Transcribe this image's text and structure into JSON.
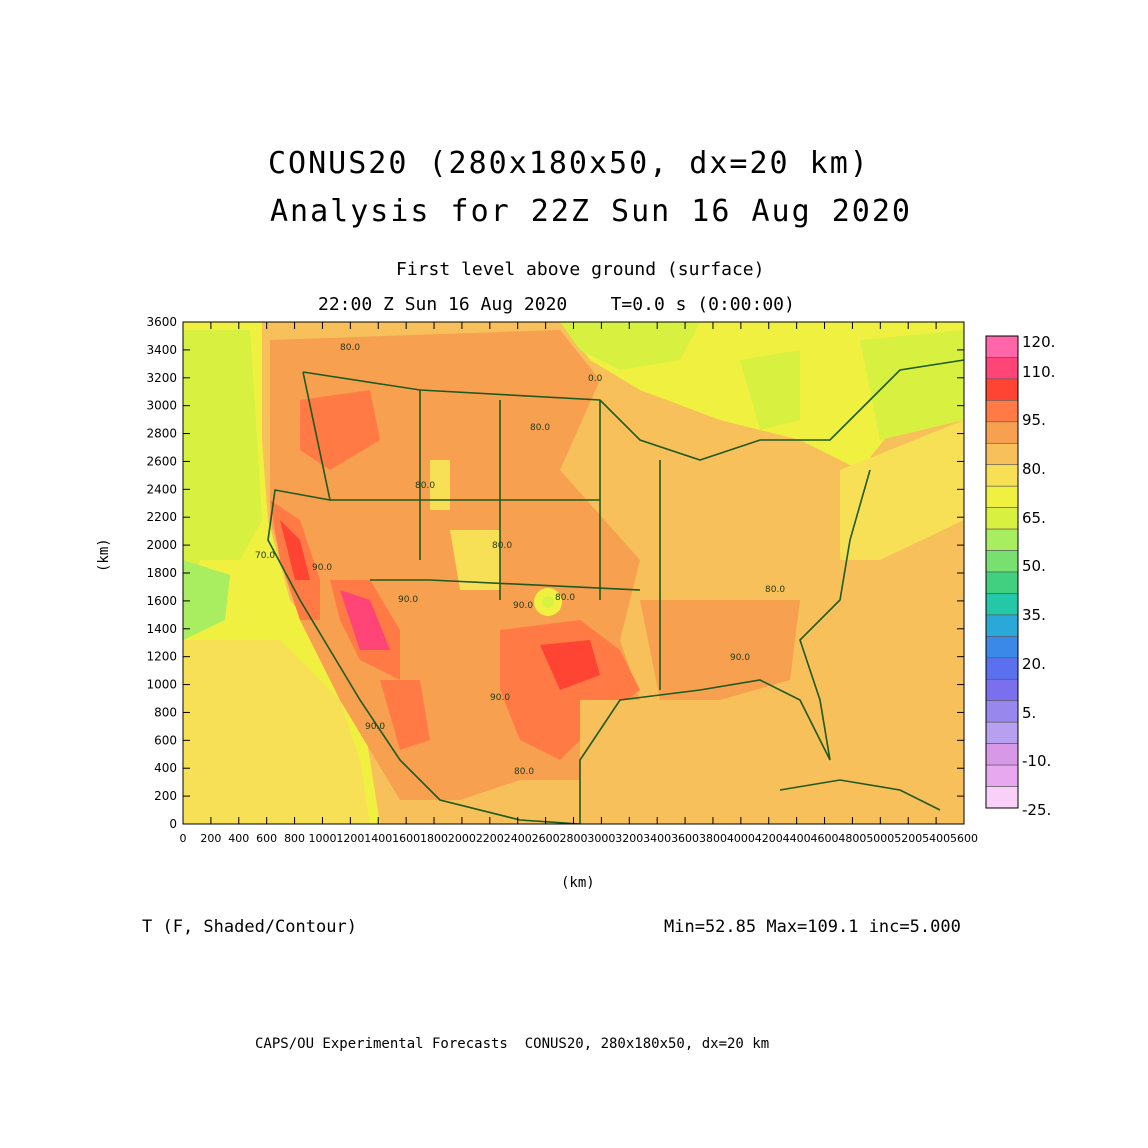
{
  "title": {
    "line1": "CONUS20 (280x180x50, dx=20 km)",
    "line2": "Analysis for 22Z Sun 16 Aug 2020"
  },
  "subtitle": {
    "level": "First level above ground (surface)",
    "time": "22:00 Z Sun 16 Aug 2020    T=0.0 s (0:00:00)"
  },
  "axes": {
    "x_unit": "(km)",
    "y_unit": "(km)",
    "x_ticks": [
      "0",
      "200",
      "400",
      "600",
      "800",
      "1000",
      "1200",
      "1400",
      "1600",
      "1800",
      "2000",
      "2200",
      "2400",
      "2600",
      "2800",
      "3000",
      "3200",
      "3400",
      "3600",
      "3800",
      "4000",
      "4200",
      "4400",
      "4600",
      "4800",
      "5000",
      "5200",
      "5400",
      "5600"
    ],
    "y_ticks": [
      "0",
      "200",
      "400",
      "600",
      "800",
      "1000",
      "1200",
      "1400",
      "1600",
      "1800",
      "2000",
      "2200",
      "2400",
      "2600",
      "2800",
      "3000",
      "3200",
      "3400",
      "3600"
    ],
    "x_range": [
      0,
      5600
    ],
    "y_range": [
      0,
      3600
    ]
  },
  "colorbar": {
    "labels": [
      "120.",
      "110.",
      "95.",
      "80.",
      "65.",
      "50.",
      "35.",
      "20.",
      "5.",
      "-10.",
      "-25."
    ],
    "colors": [
      "#ff66aa",
      "#ff4477",
      "#ff4433",
      "#ff7a44",
      "#f7a050",
      "#f7c05a",
      "#f7e055",
      "#f0f040",
      "#d8f040",
      "#a8ee60",
      "#78e070",
      "#40d080",
      "#22c8a8",
      "#2aa8d8",
      "#3a88e8",
      "#5a70ee",
      "#7a70ee",
      "#9888ee",
      "#b8a0f0",
      "#d898e8",
      "#e8a8f0",
      "#f8d0f8"
    ]
  },
  "contour_labels": [
    "80.0",
    "80.0",
    "80.0",
    "80.0",
    "70.0",
    "90.0",
    "90.0",
    "80.0",
    "90.0",
    "90.0",
    "80.0",
    "90.0",
    "90.0",
    "80.0",
    "0.0"
  ],
  "footer": {
    "variable": "T (F, Shaded/Contour)",
    "stats": "Min=52.85 Max=109.1 inc=5.000",
    "credit": "CAPS/OU Experimental Forecasts  CONUS20, 280x180x50, dx=20 km"
  }
}
